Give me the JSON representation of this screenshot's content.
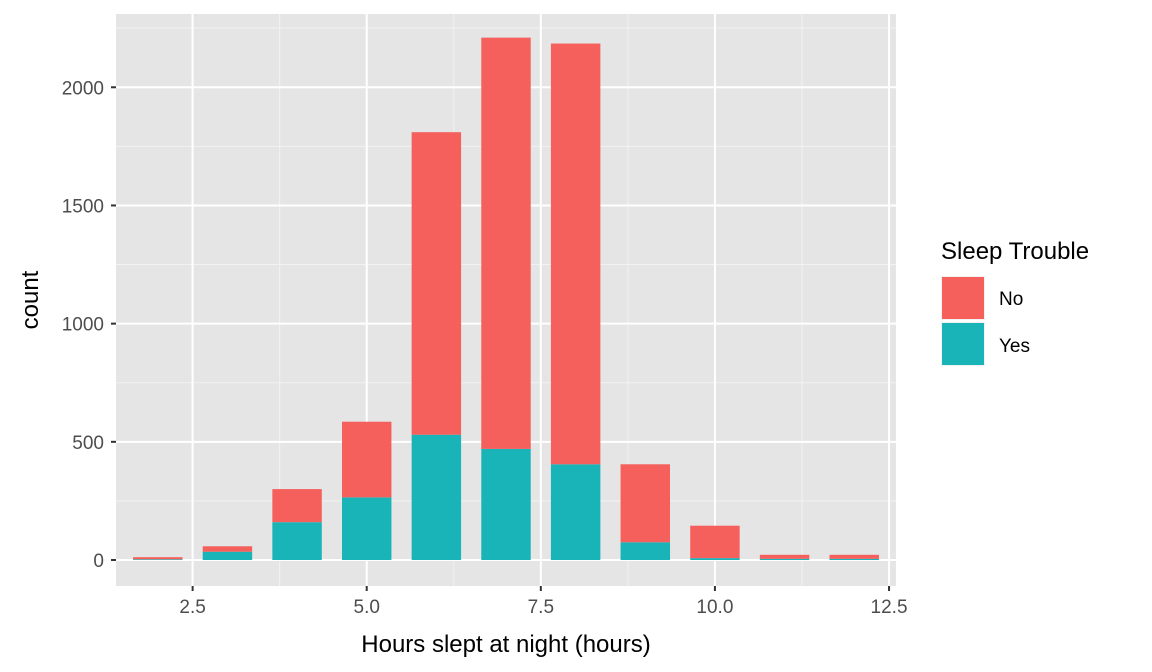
{
  "chart_data": {
    "type": "bar",
    "stacked": true,
    "xlabel": "Hours slept at night (hours)",
    "ylabel": "count",
    "xlim": [
      1.4,
      12.6
    ],
    "ylim": [
      -110,
      2310
    ],
    "x_ticks": [
      2.5,
      5.0,
      7.5,
      10.0,
      12.5
    ],
    "x_tick_labels": [
      "2.5",
      "5.0",
      "7.5",
      "10.0",
      "12.5"
    ],
    "y_ticks": [
      0,
      500,
      1000,
      1500,
      2000
    ],
    "y_tick_labels": [
      "0",
      "500",
      "1000",
      "1500",
      "2000"
    ],
    "grid": true,
    "legend": {
      "title": "Sleep Trouble",
      "position": "right"
    },
    "x": [
      2,
      3,
      4,
      5,
      6,
      7,
      8,
      9,
      10,
      11,
      12
    ],
    "series": [
      {
        "name": "Yes",
        "color": "#19b4b8",
        "values": [
          3,
          35,
          160,
          265,
          530,
          470,
          405,
          75,
          8,
          5,
          5
        ]
      },
      {
        "name": "No",
        "color": "#f5605c",
        "values": [
          9,
          23,
          140,
          320,
          1280,
          1740,
          1780,
          330,
          137,
          17,
          17
        ]
      }
    ],
    "totals": [
      12,
      58,
      300,
      585,
      1810,
      2210,
      2185,
      405,
      145,
      22,
      22
    ]
  }
}
